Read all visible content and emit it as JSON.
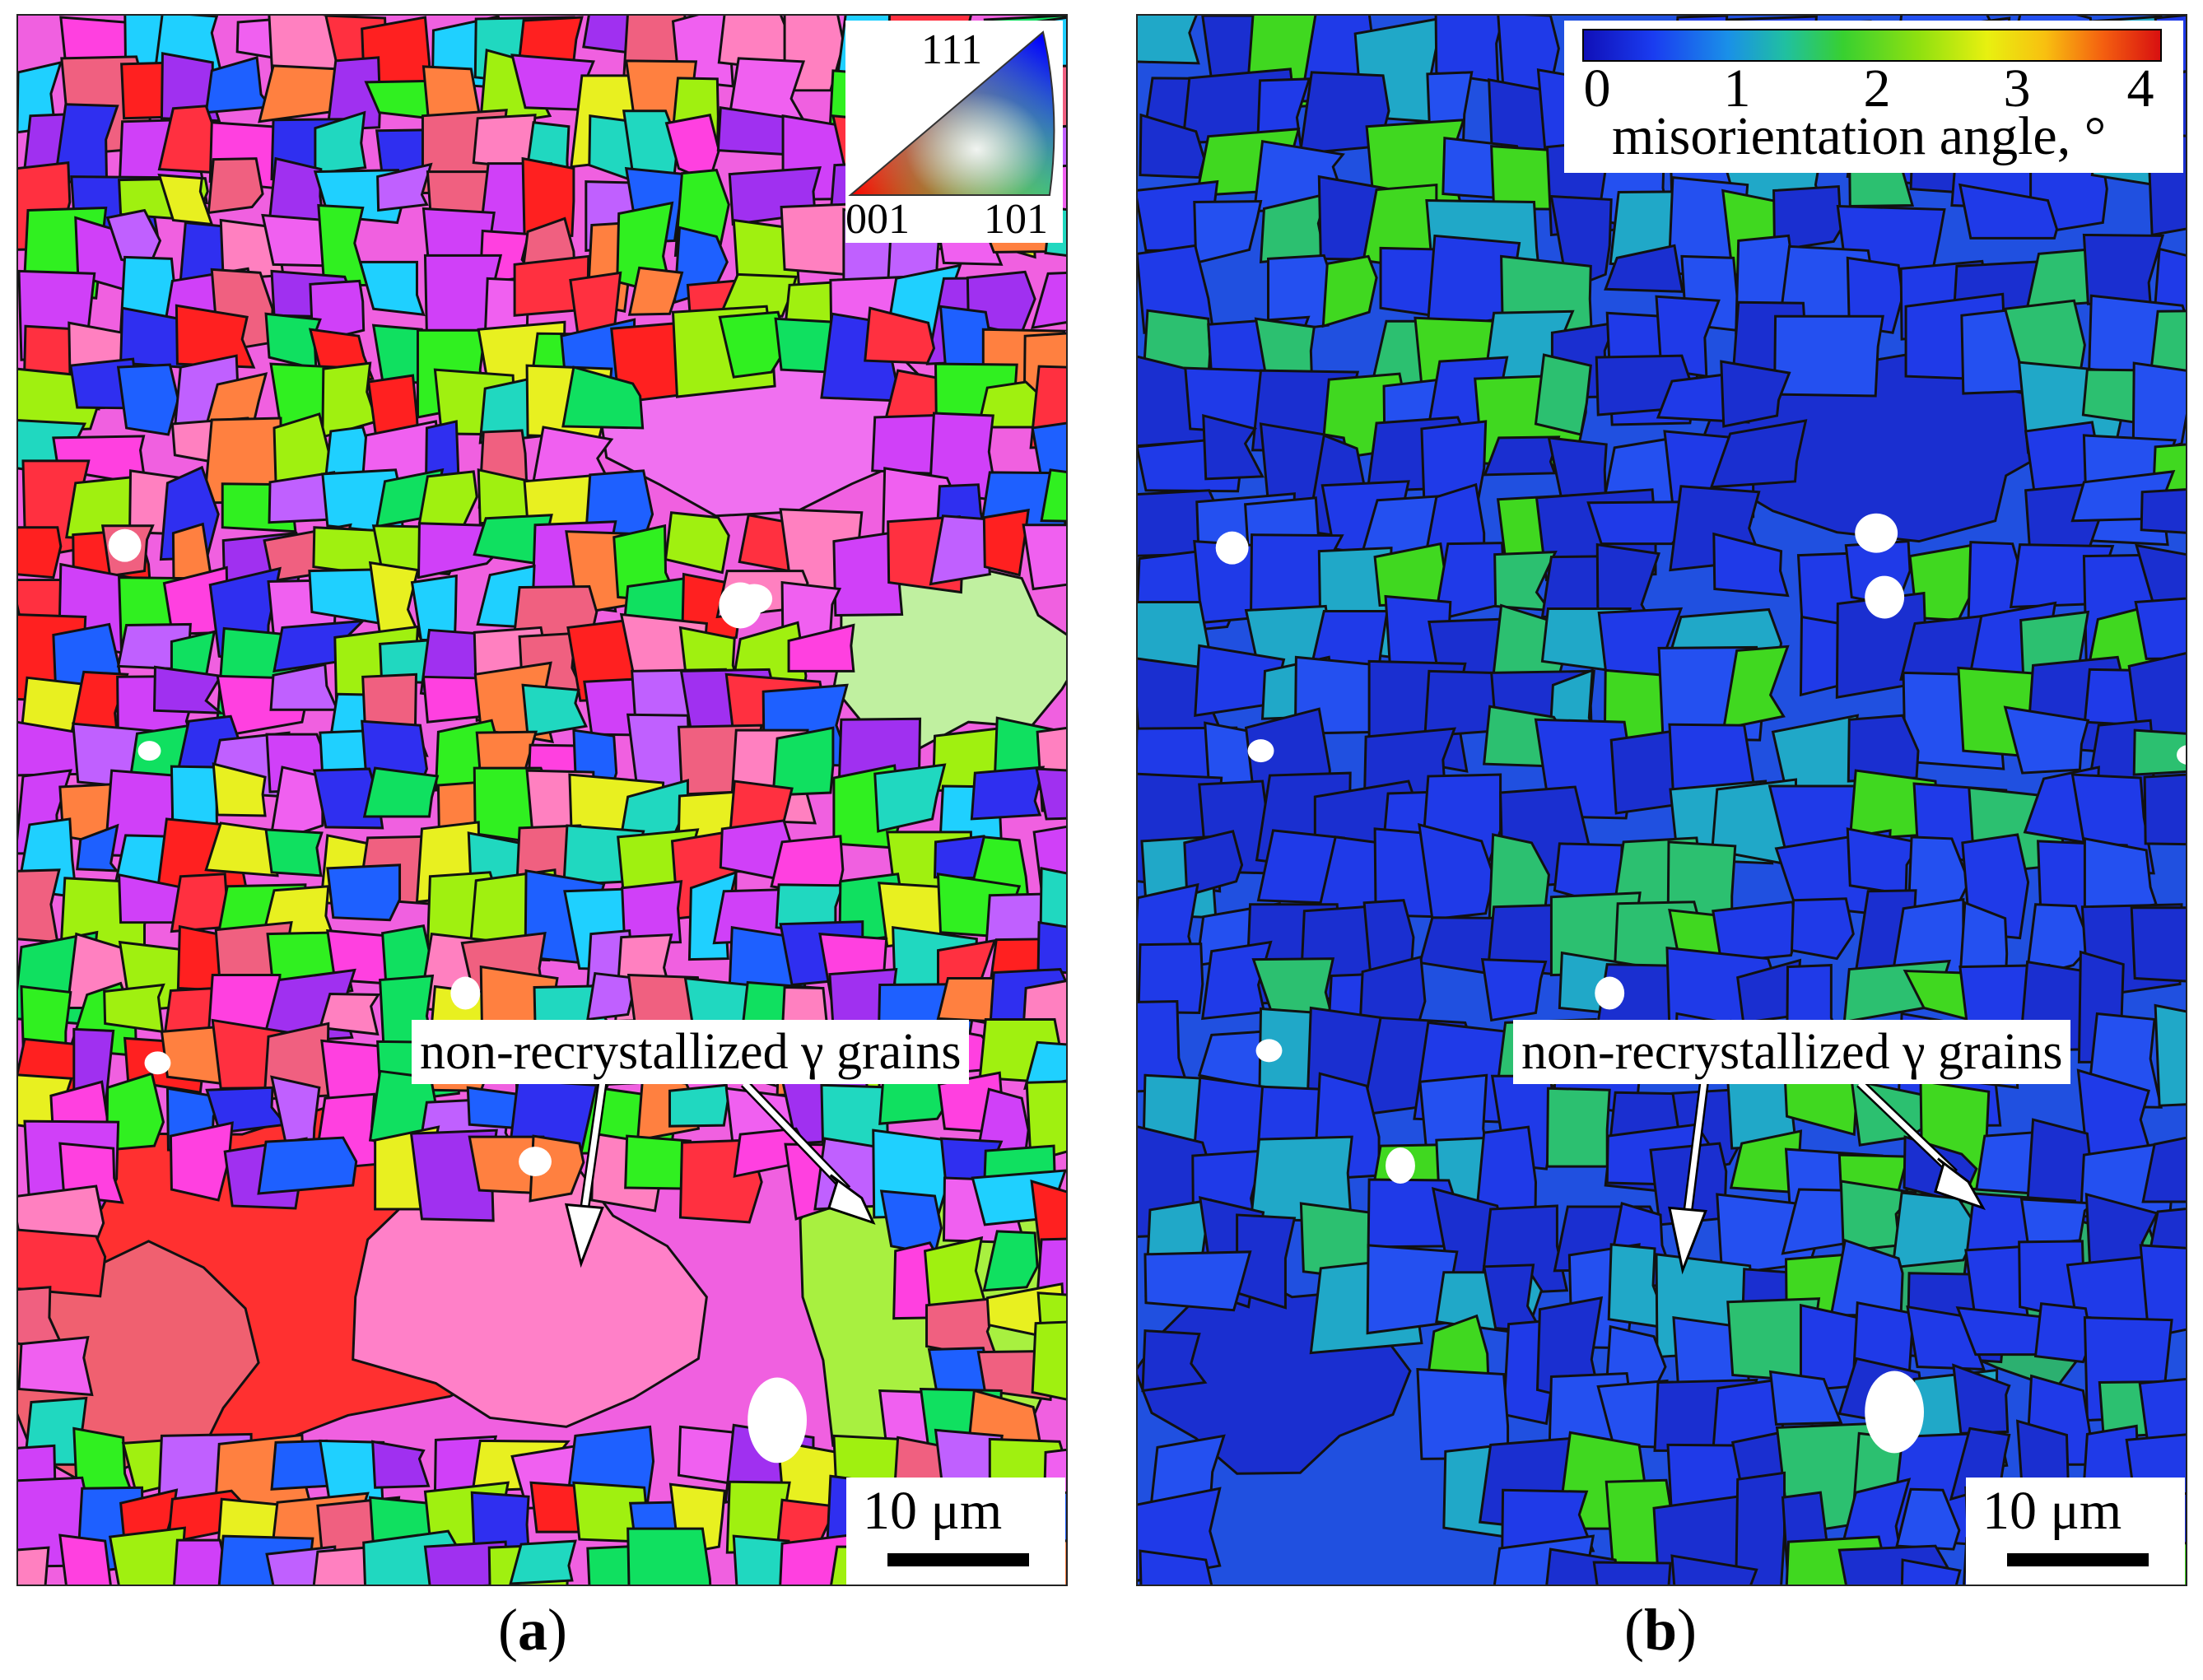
{
  "panels": [
    {
      "id": "a",
      "caption_open": "(",
      "caption_letter": "a",
      "caption_close": ")",
      "map_type": "inverse pole figure orientation map",
      "legend": {
        "top": "111",
        "left": "001",
        "right": "101"
      },
      "annotation": "non-recrystallized γ grains",
      "scale_bar": "10 μm",
      "palette": [
        "#ff40e0",
        "#f060f0",
        "#d040f8",
        "#a030f0",
        "#2f2ff0",
        "#1e60ff",
        "#1fd0ff",
        "#20d8c0",
        "#10e060",
        "#30f020",
        "#a0f010",
        "#e8f020",
        "#ff3040",
        "#ff2020",
        "#f06080",
        "#ff80c0",
        "#ff8040",
        "#c060ff"
      ]
    },
    {
      "id": "b",
      "caption_open": "(",
      "caption_letter": "b",
      "caption_close": ")",
      "map_type": "kernel average misorientation map",
      "colorbar": {
        "ticks": [
          "0",
          "1",
          "2",
          "3",
          "4"
        ],
        "label": "misorientation angle, °"
      },
      "annotation": "non-recrystallized γ grains",
      "scale_bar": "10 μm",
      "palette": [
        "#1a2fd0",
        "#1f3ae8",
        "#2450f0",
        "#1e6af0",
        "#20a8c8",
        "#2cc070",
        "#40d820",
        "#9ee010",
        "#f0e810",
        "#f08010",
        "#e01818"
      ]
    }
  ]
}
